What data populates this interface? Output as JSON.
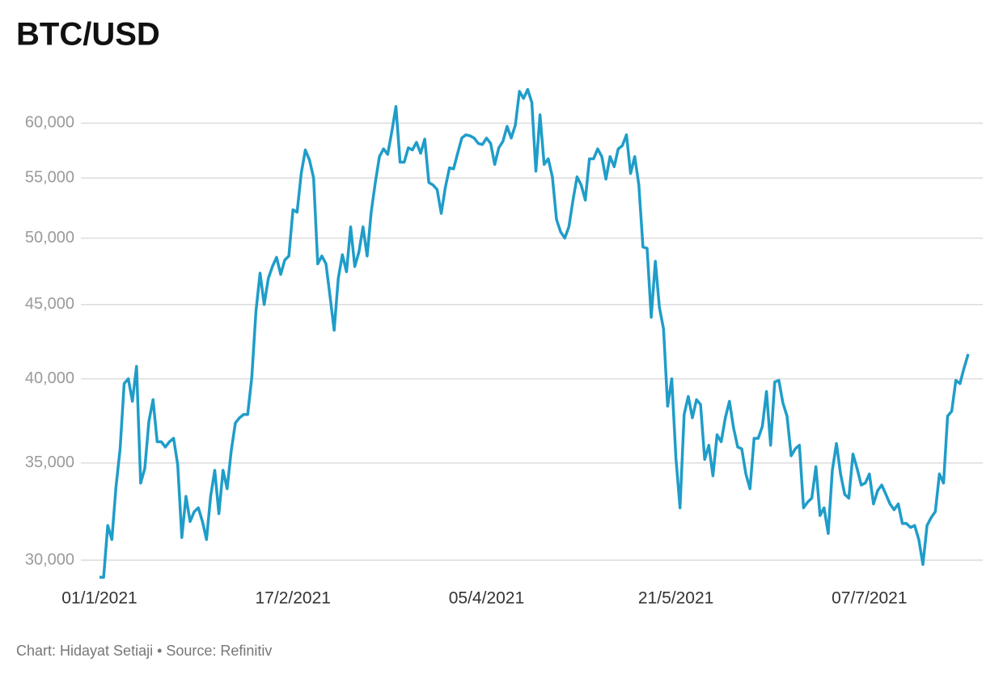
{
  "chart_data": {
    "type": "line",
    "title": "BTC/USD",
    "footer": "Chart: Hidayat Setiaji • Source: Refinitiv",
    "color": "#1f9dc9",
    "log_y": true,
    "grid": true,
    "ylim": [
      29000,
      64000
    ],
    "yticks": [
      {
        "value": 30000,
        "label": "30,000"
      },
      {
        "value": 35000,
        "label": "35,000"
      },
      {
        "value": 40000,
        "label": "40,000"
      },
      {
        "value": 45000,
        "label": "45,000"
      },
      {
        "value": 50000,
        "label": "50,000"
      },
      {
        "value": 55000,
        "label": "55,000"
      },
      {
        "value": 60000,
        "label": "60,000"
      }
    ],
    "xticks": [
      {
        "value": "2021-01-01",
        "label": "01/1/2021"
      },
      {
        "value": "2021-02-17",
        "label": "17/2/2021"
      },
      {
        "value": "2021-04-05",
        "label": "05/4/2021"
      },
      {
        "value": "2021-05-21",
        "label": "21/5/2021"
      },
      {
        "value": "2021-07-07",
        "label": "07/7/2021"
      }
    ],
    "x": [
      "2021-01-01",
      "2021-01-02",
      "2021-01-03",
      "2021-01-04",
      "2021-01-05",
      "2021-01-06",
      "2021-01-07",
      "2021-01-08",
      "2021-01-09",
      "2021-01-10",
      "2021-01-11",
      "2021-01-12",
      "2021-01-13",
      "2021-01-14",
      "2021-01-15",
      "2021-01-16",
      "2021-01-17",
      "2021-01-18",
      "2021-01-19",
      "2021-01-20",
      "2021-01-21",
      "2021-01-22",
      "2021-01-23",
      "2021-01-24",
      "2021-01-25",
      "2021-01-26",
      "2021-01-27",
      "2021-01-28",
      "2021-01-29",
      "2021-01-30",
      "2021-01-31",
      "2021-02-01",
      "2021-02-02",
      "2021-02-03",
      "2021-02-04",
      "2021-02-05",
      "2021-02-06",
      "2021-02-07",
      "2021-02-08",
      "2021-02-09",
      "2021-02-10",
      "2021-02-11",
      "2021-02-12",
      "2021-02-13",
      "2021-02-14",
      "2021-02-15",
      "2021-02-16",
      "2021-02-17",
      "2021-02-18",
      "2021-02-19",
      "2021-02-20",
      "2021-02-21",
      "2021-02-22",
      "2021-02-23",
      "2021-02-24",
      "2021-02-25",
      "2021-02-26",
      "2021-02-27",
      "2021-02-28",
      "2021-03-01",
      "2021-03-02",
      "2021-03-03",
      "2021-03-04",
      "2021-03-05",
      "2021-03-06",
      "2021-03-07",
      "2021-03-08",
      "2021-03-09",
      "2021-03-10",
      "2021-03-11",
      "2021-03-12",
      "2021-03-13",
      "2021-03-14",
      "2021-03-15",
      "2021-03-16",
      "2021-03-17",
      "2021-03-18",
      "2021-03-19",
      "2021-03-20",
      "2021-03-21",
      "2021-03-22",
      "2021-03-23",
      "2021-03-24",
      "2021-03-25",
      "2021-03-26",
      "2021-03-27",
      "2021-03-28",
      "2021-03-29",
      "2021-03-30",
      "2021-03-31",
      "2021-04-01",
      "2021-04-02",
      "2021-04-03",
      "2021-04-04",
      "2021-04-05",
      "2021-04-06",
      "2021-04-07",
      "2021-04-08",
      "2021-04-09",
      "2021-04-10",
      "2021-04-11",
      "2021-04-12",
      "2021-04-13",
      "2021-04-14",
      "2021-04-15",
      "2021-04-16",
      "2021-04-17",
      "2021-04-18",
      "2021-04-19",
      "2021-04-20",
      "2021-04-21",
      "2021-04-22",
      "2021-04-23",
      "2021-04-24",
      "2021-04-25",
      "2021-04-26",
      "2021-04-27",
      "2021-04-28",
      "2021-04-29",
      "2021-04-30",
      "2021-05-01",
      "2021-05-02",
      "2021-05-03",
      "2021-05-04",
      "2021-05-05",
      "2021-05-06",
      "2021-05-07",
      "2021-05-08",
      "2021-05-09",
      "2021-05-10",
      "2021-05-11",
      "2021-05-12",
      "2021-05-13",
      "2021-05-14",
      "2021-05-15",
      "2021-05-16",
      "2021-05-17",
      "2021-05-18",
      "2021-05-19",
      "2021-05-20",
      "2021-05-21",
      "2021-05-22",
      "2021-05-23",
      "2021-05-24",
      "2021-05-25",
      "2021-05-26",
      "2021-05-27",
      "2021-05-28",
      "2021-05-29",
      "2021-05-30",
      "2021-05-31",
      "2021-06-01",
      "2021-06-02",
      "2021-06-03",
      "2021-06-04",
      "2021-06-05",
      "2021-06-06",
      "2021-06-07",
      "2021-06-08",
      "2021-06-09",
      "2021-06-10",
      "2021-06-11",
      "2021-06-12",
      "2021-06-13",
      "2021-06-14",
      "2021-06-15",
      "2021-06-16",
      "2021-06-17",
      "2021-06-18",
      "2021-06-19",
      "2021-06-20",
      "2021-06-21",
      "2021-06-22",
      "2021-06-23",
      "2021-06-24",
      "2021-06-25",
      "2021-06-26",
      "2021-06-27",
      "2021-06-28",
      "2021-06-29",
      "2021-06-30",
      "2021-07-01",
      "2021-07-02",
      "2021-07-03",
      "2021-07-04",
      "2021-07-05",
      "2021-07-06",
      "2021-07-07",
      "2021-07-08",
      "2021-07-09",
      "2021-07-10",
      "2021-07-11",
      "2021-07-12",
      "2021-07-13",
      "2021-07-14",
      "2021-07-15",
      "2021-07-16",
      "2021-07-17",
      "2021-07-18",
      "2021-07-19",
      "2021-07-20",
      "2021-07-21",
      "2021-07-22",
      "2021-07-23",
      "2021-07-24",
      "2021-07-25",
      "2021-07-26",
      "2021-07-27",
      "2021-07-28",
      "2021-07-29",
      "2021-07-30",
      "2021-07-31"
    ],
    "values": [
      29200,
      29200,
      31700,
      31000,
      33700,
      35800,
      39700,
      40000,
      38600,
      40800,
      33900,
      34700,
      37400,
      38700,
      36200,
      36200,
      35900,
      36200,
      36400,
      34900,
      31100,
      33200,
      31900,
      32400,
      32600,
      31900,
      31000,
      33200,
      34600,
      32300,
      34600,
      33600,
      35700,
      37300,
      37600,
      37800,
      37800,
      40100,
      44500,
      47300,
      45000,
      46900,
      47800,
      48500,
      47200,
      48300,
      48600,
      52300,
      52100,
      55400,
      57500,
      56600,
      55000,
      48000,
      48600,
      48000,
      45600,
      43200,
      46900,
      48700,
      47400,
      50900,
      47800,
      48900,
      50900,
      48600,
      52100,
      54600,
      56900,
      57600,
      57100,
      59200,
      61600,
      56400,
      56400,
      57700,
      57500,
      58200,
      57200,
      58500,
      54600,
      54400,
      54000,
      52000,
      54200,
      55900,
      55800,
      57200,
      58600,
      58900,
      58800,
      58600,
      58100,
      58000,
      58600,
      58100,
      56200,
      57700,
      58300,
      59700,
      58600,
      59800,
      63100,
      62400,
      63300,
      62000,
      55600,
      60800,
      56200,
      56700,
      55100,
      51500,
      50500,
      50000,
      50900,
      53100,
      55100,
      54400,
      53100,
      56700,
      56700,
      57600,
      56900,
      54900,
      56900,
      56000,
      57600,
      57900,
      58900,
      55400,
      56900,
      54400,
      49300,
      49200,
      44100,
      48200,
      44800,
      43300,
      38300,
      40000,
      35300,
      32600,
      37800,
      38900,
      37600,
      38700,
      38400,
      35200,
      36000,
      34300,
      36600,
      36200,
      37600,
      38600,
      37000,
      35900,
      35800,
      34400,
      33600,
      36400,
      36400,
      37100,
      39200,
      36000,
      39800,
      39900,
      38500,
      37700,
      35400,
      35800,
      36000,
      32600,
      32900,
      33100,
      34800,
      32200,
      32600,
      31300,
      34600,
      36100,
      34400,
      33300,
      33100,
      35500,
      34700,
      33800,
      33900,
      34400,
      32800,
      33500,
      33800,
      33300,
      32800,
      32500,
      32800,
      31800,
      31800,
      31600,
      31700,
      31000,
      29800,
      31700,
      32100,
      32400,
      34400,
      33900,
      37700,
      38000,
      39900,
      39700,
      40700,
      41600
    ]
  }
}
